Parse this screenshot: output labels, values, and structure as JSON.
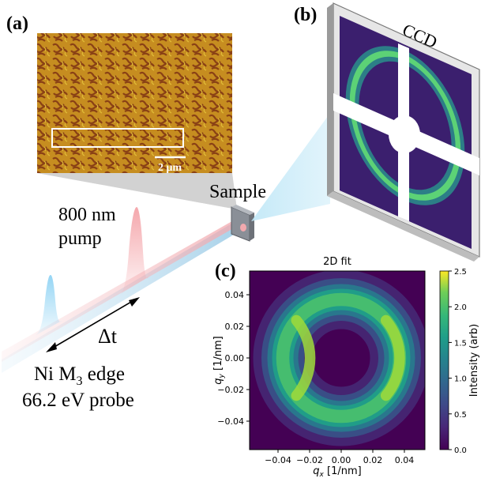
{
  "figure": {
    "panel_a_label": "(a)",
    "panel_b_label": "(b)",
    "panel_c_label": "(c)",
    "scalebar_label": "2 μm",
    "ccd_label": "CCD",
    "sample_label": "Sample",
    "pump_line1": "800 nm",
    "pump_line2": "pump",
    "delay_label": "Δt",
    "probe_line1_prefix": "Ni M",
    "probe_line1_sub": "3",
    "probe_line1_suffix": " edge",
    "probe_line2": "66.2 eV probe",
    "colors": {
      "pump": "#f4a3a8",
      "probe": "#8fd3f4",
      "mfm_base": "#c48a1e",
      "mfm_dark": "#7a2e10",
      "ccd_background": "#3b1f6e",
      "ccd_ring": "#3fd08f"
    }
  },
  "chart_data": {
    "type": "heatmap",
    "title": "2D fit",
    "xlabel_var": "q",
    "xlabel_sub": "x",
    "xlabel_unit": " [1/nm]",
    "ylabel_var": "q",
    "ylabel_sub": "y",
    "ylabel_unit": " [1/nm]",
    "xlim": [
      -0.058,
      0.053
    ],
    "ylim": [
      -0.058,
      0.055
    ],
    "x_ticks": [
      -0.04,
      -0.02,
      0.0,
      0.02,
      0.04
    ],
    "x_tick_labels": [
      "−0.04",
      "−0.02",
      "0.00",
      "0.02",
      "0.04"
    ],
    "y_ticks": [
      0.04,
      0.02,
      0.0,
      -0.02,
      -0.04
    ],
    "y_tick_labels": [
      "0.04",
      "0.02",
      "0.00",
      "−0.02",
      "−0.04"
    ],
    "ring": {
      "center": [
        0.0,
        0.0
      ],
      "radius": 0.037,
      "width": 0.0075,
      "peak_intensity": 2.3,
      "bright_sides": "left-right"
    },
    "colorbar": {
      "label": "Intensity (arb)",
      "colormap": "viridis",
      "range": [
        0.0,
        2.5
      ],
      "ticks": [
        0.0,
        0.5,
        1.0,
        1.5,
        2.0,
        2.5
      ],
      "tick_labels": [
        "0.0",
        "0.5",
        "1.0",
        "1.5",
        "2.0",
        "2.5"
      ]
    }
  }
}
